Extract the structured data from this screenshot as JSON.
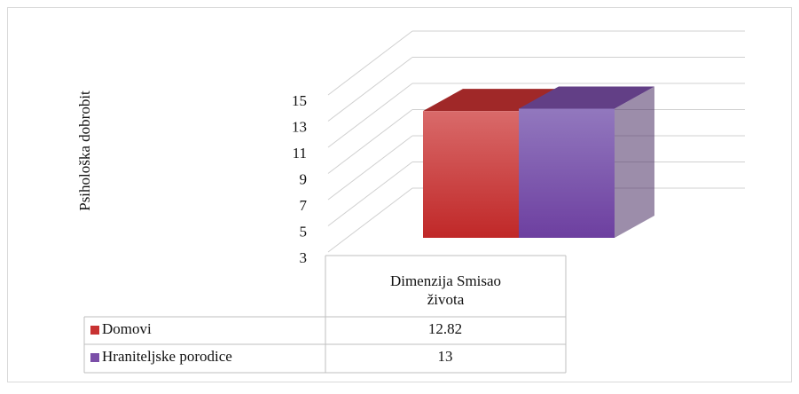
{
  "chart_data": {
    "type": "bar3d",
    "y_label": "Psihološka dobrobit",
    "categories": [
      "Dimenzija Smisao života"
    ],
    "series": [
      {
        "name": "Domovi",
        "color": "#c83232",
        "values": [
          12.82
        ]
      },
      {
        "name": "Hraniteljske porodice",
        "color": "#7b4fa8",
        "values": [
          13
        ]
      }
    ],
    "ylim": [
      3,
      15
    ],
    "yticks": [
      3,
      5,
      7,
      9,
      11,
      13,
      15
    ],
    "grid": true
  }
}
